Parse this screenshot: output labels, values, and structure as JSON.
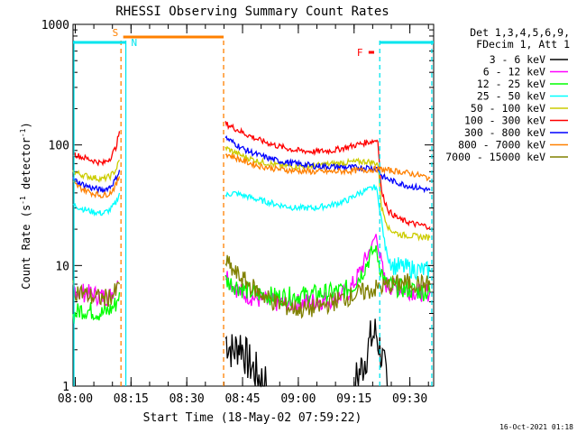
{
  "chart_data": {
    "type": "line",
    "title": "RHESSI Observing Summary Count Rates",
    "xlabel": "Start Time (18-May-02 07:59:22)",
    "ylabel_main": "Count Rate (s",
    "ylabel_sup1": "-1",
    "ylabel_mid": " detector",
    "ylabel_sup2": "-1",
    "ylabel_end": ")",
    "yscale": "log",
    "xlim_minutes": [
      0,
      97
    ],
    "ylim": [
      1,
      1000
    ],
    "xticks": [
      {
        "label": "08:00",
        "minute": 0.6
      },
      {
        "label": "08:15",
        "minute": 15.6
      },
      {
        "label": "08:30",
        "minute": 30.6
      },
      {
        "label": "08:45",
        "minute": 45.6
      },
      {
        "label": "09:00",
        "minute": 60.6
      },
      {
        "label": "09:15",
        "minute": 75.6
      },
      {
        "label": "09:30",
        "minute": 90.6
      }
    ],
    "yticks": [
      {
        "label": "1",
        "value": 1
      },
      {
        "label": "10",
        "value": 10
      },
      {
        "label": "100",
        "value": 100
      },
      {
        "label": "1000",
        "value": 1000
      }
    ],
    "legend": {
      "position": "top-right",
      "header": [
        "Det 1,3,4,5,6,9,",
        "FDecim 1, Att 1"
      ]
    },
    "timestamp": "16-Oct-2021 01:18",
    "flags": {
      "saa": {
        "label": "S",
        "start": 13.5,
        "end": 40.5,
        "color": "#ff8000"
      },
      "night": [
        {
          "label": "N",
          "start": 0,
          "end": 14.2,
          "color": "#00e5ee"
        },
        {
          "start": 82.5,
          "end": 97,
          "color": "#00e5ee"
        }
      ],
      "flare": {
        "label": "F",
        "start": 79.5,
        "end": 81.0,
        "color": "#ff0000"
      }
    },
    "vlines": [
      {
        "minute": 12.9,
        "color": "#ff8000"
      },
      {
        "minute": 40.5,
        "color": "#ff8000"
      },
      {
        "minute": 14.2,
        "color": "#00e5ee"
      },
      {
        "minute": 82.5,
        "color": "#00e5ee"
      }
    ],
    "series": [
      {
        "name": "3 - 6 keV",
        "color": "#000000",
        "segments": [
          [
            [
              41,
              2.5
            ],
            [
              43,
              1.9
            ],
            [
              45,
              2.3
            ],
            [
              47,
              1.6
            ],
            [
              50,
              1.2
            ],
            [
              52,
              1.0
            ]
          ],
          [
            [
              76,
              1.1
            ],
            [
              78,
              1.5
            ],
            [
              80,
              2.4
            ],
            [
              81.5,
              2.8
            ],
            [
              83,
              1.8
            ],
            [
              84.5,
              1.0
            ]
          ]
        ]
      },
      {
        "name": "6 - 12 keV",
        "color": "#ff00ff",
        "segments": [
          [
            [
              0,
              6.5
            ],
            [
              2,
              6.0
            ],
            [
              5,
              5.8
            ],
            [
              8,
              5.5
            ],
            [
              10,
              5.6
            ],
            [
              12,
              7.5
            ]
          ],
          [
            [
              41,
              8.5
            ],
            [
              43,
              7.0
            ],
            [
              45,
              6.0
            ],
            [
              48,
              5.5
            ],
            [
              52,
              5.0
            ],
            [
              58,
              4.8
            ],
            [
              64,
              5.0
            ],
            [
              70,
              5.3
            ],
            [
              74,
              6.0
            ],
            [
              76,
              7.5
            ],
            [
              78,
              10
            ],
            [
              80,
              14
            ],
            [
              81.5,
              18
            ],
            [
              82.5,
              12
            ],
            [
              84,
              7.0
            ],
            [
              87,
              6.5
            ],
            [
              90,
              6.3
            ],
            [
              93,
              6.0
            ],
            [
              96,
              6.0
            ]
          ]
        ]
      },
      {
        "name": "12 - 25 keV",
        "color": "#00ff00",
        "segments": [
          [
            [
              0,
              3.8
            ],
            [
              2,
              4.3
            ],
            [
              5,
              4.2
            ],
            [
              8,
              4.0
            ],
            [
              10,
              4.3
            ],
            [
              11.5,
              4.8
            ],
            [
              12.5,
              6.0
            ]
          ],
          [
            [
              41,
              7.5
            ],
            [
              43,
              7.0
            ],
            [
              46,
              6.3
            ],
            [
              50,
              5.8
            ],
            [
              55,
              5.5
            ],
            [
              60,
              5.6
            ],
            [
              65,
              5.8
            ],
            [
              70,
              6.0
            ],
            [
              75,
              6.5
            ],
            [
              78,
              9.0
            ],
            [
              80,
              12
            ],
            [
              81.5,
              14
            ],
            [
              82.5,
              10
            ],
            [
              84,
              7.0
            ],
            [
              88,
              6.5
            ],
            [
              92,
              6.2
            ],
            [
              96,
              6.0
            ]
          ]
        ]
      },
      {
        "name": "25 - 50 keV",
        "color": "#00ffff",
        "segments": [
          [
            [
              0,
              32
            ],
            [
              2,
              30
            ],
            [
              5,
              28
            ],
            [
              8,
              27
            ],
            [
              10,
              29
            ],
            [
              11.5,
              33
            ],
            [
              12.5,
              40
            ]
          ],
          [
            [
              41,
              38
            ],
            [
              43,
              40
            ],
            [
              46,
              38
            ],
            [
              50,
              35
            ],
            [
              55,
              32
            ],
            [
              60,
              30
            ],
            [
              65,
              30
            ],
            [
              70,
              32
            ],
            [
              74,
              35
            ],
            [
              77,
              40
            ],
            [
              79,
              42
            ],
            [
              81.5,
              45
            ],
            [
              82.5,
              30
            ],
            [
              84,
              14
            ],
            [
              86,
              10
            ],
            [
              90,
              9.5
            ],
            [
              93,
              9.2
            ],
            [
              96,
              9.0
            ]
          ]
        ]
      },
      {
        "name": "50 - 100 keV",
        "color": "#cccc00",
        "segments": [
          [
            [
              0,
              60
            ],
            [
              2,
              57
            ],
            [
              5,
              54
            ],
            [
              8,
              52
            ],
            [
              10,
              55
            ],
            [
              11.5,
              62
            ],
            [
              12.5,
              75
            ]
          ],
          [
            [
              41,
              95
            ],
            [
              43,
              88
            ],
            [
              46,
              80
            ],
            [
              50,
              73
            ],
            [
              55,
              68
            ],
            [
              60,
              66
            ],
            [
              65,
              67
            ],
            [
              70,
              70
            ],
            [
              75,
              72
            ],
            [
              79,
              73
            ],
            [
              82,
              70
            ],
            [
              83,
              30
            ],
            [
              85,
              20
            ],
            [
              88,
              18
            ],
            [
              92,
              17.5
            ],
            [
              96,
              17
            ]
          ]
        ]
      },
      {
        "name": "100 - 300 keV",
        "color": "#ff0000",
        "segments": [
          [
            [
              0,
              85
            ],
            [
              2,
              80
            ],
            [
              5,
              75
            ],
            [
              8,
              70
            ],
            [
              10,
              78
            ],
            [
              11.5,
              95
            ],
            [
              12.5,
              130
            ]
          ],
          [
            [
              41,
              150
            ],
            [
              43,
              140
            ],
            [
              46,
              125
            ],
            [
              50,
              110
            ],
            [
              55,
              98
            ],
            [
              60,
              90
            ],
            [
              65,
              88
            ],
            [
              70,
              90
            ],
            [
              75,
              98
            ],
            [
              79,
              105
            ],
            [
              82,
              110
            ],
            [
              83,
              40
            ],
            [
              85,
              28
            ],
            [
              88,
              24
            ],
            [
              92,
              22
            ],
            [
              96,
              21
            ]
          ]
        ]
      },
      {
        "name": "300 - 800 keV",
        "color": "#0000ff",
        "segments": [
          [
            [
              0,
              52
            ],
            [
              2,
              48
            ],
            [
              5,
              44
            ],
            [
              8,
              42
            ],
            [
              10,
              45
            ],
            [
              11.5,
              52
            ],
            [
              12.5,
              62
            ]
          ],
          [
            [
              41,
              115
            ],
            [
              43,
              105
            ],
            [
              46,
              92
            ],
            [
              50,
              82
            ],
            [
              55,
              74
            ],
            [
              60,
              70
            ],
            [
              65,
              67
            ],
            [
              70,
              66
            ],
            [
              75,
              65
            ],
            [
              79,
              65
            ],
            [
              82,
              64
            ],
            [
              83,
              55
            ],
            [
              86,
              50
            ],
            [
              90,
              46
            ],
            [
              93,
              44
            ],
            [
              96,
              42
            ]
          ]
        ]
      },
      {
        "name": "800 - 7000 keV",
        "color": "#ff8000",
        "segments": [
          [
            [
              0,
              48
            ],
            [
              2,
              44
            ],
            [
              5,
              40
            ],
            [
              8,
              38
            ],
            [
              10,
              40
            ],
            [
              11.5,
              46
            ],
            [
              12.5,
              55
            ]
          ],
          [
            [
              41,
              85
            ],
            [
              43,
              80
            ],
            [
              46,
              73
            ],
            [
              50,
              67
            ],
            [
              55,
              63
            ],
            [
              60,
              61
            ],
            [
              65,
              60
            ],
            [
              70,
              60
            ],
            [
              75,
              61
            ],
            [
              79,
              62
            ],
            [
              82,
              63
            ],
            [
              84,
              62
            ],
            [
              88,
              60
            ],
            [
              92,
              57
            ],
            [
              96,
              53
            ]
          ]
        ]
      },
      {
        "name": "7000 - 15000 keV",
        "color": "#808000",
        "segments": [
          [
            [
              0,
              6.3
            ],
            [
              2,
              6.0
            ],
            [
              5,
              5.5
            ],
            [
              8,
              5.3
            ],
            [
              10,
              5.5
            ],
            [
              11.5,
              6.0
            ],
            [
              12.5,
              7.0
            ]
          ],
          [
            [
              41,
              11
            ],
            [
              43,
              9
            ],
            [
              46,
              7.5
            ],
            [
              50,
              6.0
            ],
            [
              54,
              5.0
            ],
            [
              58,
              4.5
            ],
            [
              62,
              4.3
            ],
            [
              66,
              4.5
            ],
            [
              70,
              5.0
            ],
            [
              74,
              5.5
            ],
            [
              78,
              6.0
            ],
            [
              82,
              6.5
            ],
            [
              86,
              7.0
            ],
            [
              90,
              7.2
            ],
            [
              94,
              7.0
            ],
            [
              96,
              7.0
            ]
          ]
        ]
      }
    ]
  }
}
